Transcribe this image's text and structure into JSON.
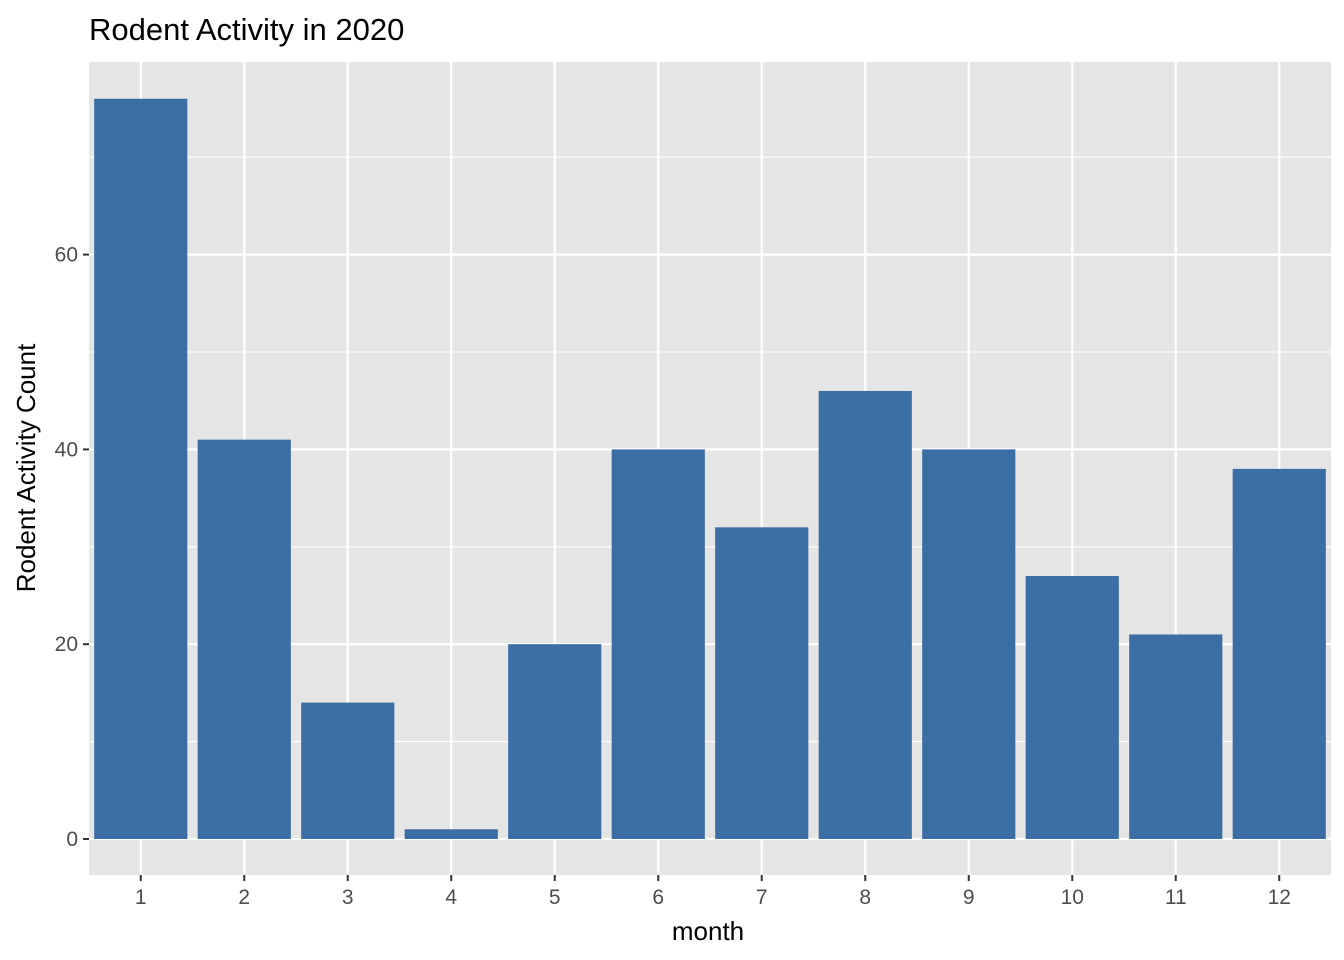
{
  "chart_data": {
    "type": "bar",
    "title": "Rodent Activity in 2020",
    "xlabel": "month",
    "ylabel": "Rodent Activity Count",
    "categories": [
      "1",
      "2",
      "3",
      "4",
      "5",
      "6",
      "7",
      "8",
      "9",
      "10",
      "11",
      "12"
    ],
    "values": [
      76,
      41,
      14,
      1,
      20,
      40,
      32,
      46,
      40,
      27,
      21,
      38
    ],
    "ylim": [
      0,
      79.8
    ],
    "yticks": [
      0,
      20,
      40,
      60
    ],
    "yminor": [
      10,
      30,
      50,
      70
    ],
    "grid": true,
    "legend": "none",
    "colors": {
      "bar": "#3A6EA5",
      "panel": "#E5E5E5",
      "grid": "#FFFFFF",
      "tick": "#333333"
    }
  }
}
